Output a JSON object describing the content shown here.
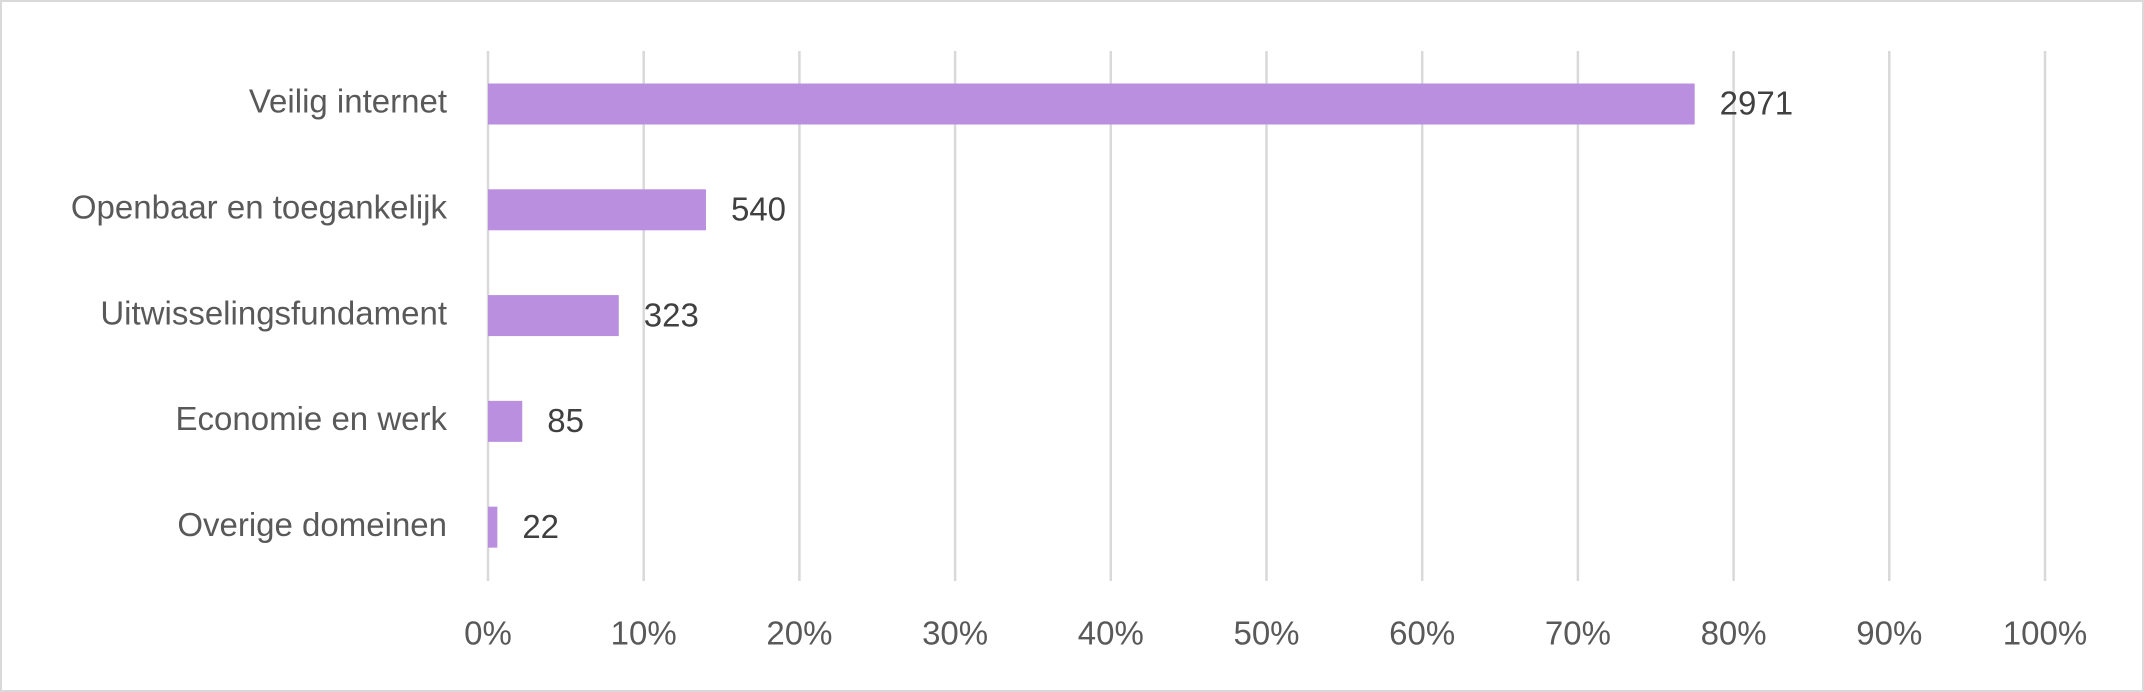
{
  "chart_data": {
    "type": "hbar",
    "categories": [
      "Veilig internet",
      "Openbaar en toegankelijk",
      "Uitwisselingsfundament",
      "Economie en werk",
      "Overige domeinen"
    ],
    "values": [
      77.5,
      14.0,
      8.4,
      2.2,
      0.6
    ],
    "value_labels": [
      "2971",
      "540",
      "323",
      "85",
      "22"
    ],
    "color": "#bb8fdf",
    "xlim": [
      0,
      100
    ],
    "xticks": [
      {
        "value": 0,
        "label": "0%"
      },
      {
        "value": 10,
        "label": "10%"
      },
      {
        "value": 20,
        "label": "20%"
      },
      {
        "value": 30,
        "label": "30%"
      },
      {
        "value": 40,
        "label": "40%"
      },
      {
        "value": 50,
        "label": "50%"
      },
      {
        "value": 60,
        "label": "60%"
      },
      {
        "value": 70,
        "label": "70%"
      },
      {
        "value": 80,
        "label": "80%"
      },
      {
        "value": 90,
        "label": "90%"
      },
      {
        "value": 100,
        "label": "100%"
      }
    ],
    "grid": true
  }
}
